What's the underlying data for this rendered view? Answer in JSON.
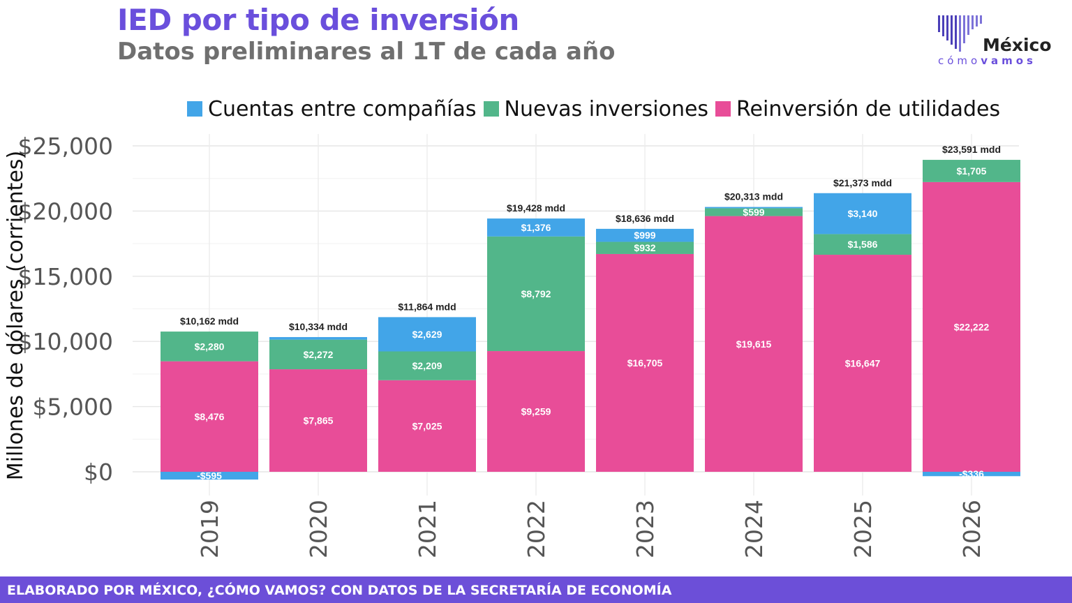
{
  "header": {
    "title": "IED por tipo de inversión",
    "subtitle": "Datos preliminares al 1T de cada año"
  },
  "logo": {
    "word1": "México",
    "word2a": "cómo",
    "word2b": "vamos"
  },
  "footer": {
    "text": "ELABORADO POR MÉXICO, ¿CÓMO VAMOS? CON DATOS DE LA SECRETARÍA DE ECONOMÍA"
  },
  "colors": {
    "title": "#6a4fdc",
    "footer_bg": "#6c4fd8",
    "cuentas": "#42a5e8",
    "nuevas": "#52b68a",
    "reinversion": "#e84d98"
  },
  "chart_data": {
    "type": "bar",
    "stacked": true,
    "categories": [
      "2019",
      "2020",
      "2021",
      "2022",
      "2023",
      "2024",
      "2025",
      "2026"
    ],
    "series": [
      {
        "name": "Reinversión de utilidades",
        "color": "#e84d98",
        "values": [
          8476,
          7865,
          7025,
          9259,
          16705,
          19615,
          16647,
          22222
        ],
        "labels": [
          "$8,476",
          "$7,865",
          "$7,025",
          "$9,259",
          "$16,705",
          "$19,615",
          "$16,647",
          "$22,222"
        ]
      },
      {
        "name": "Nuevas inversiones",
        "color": "#52b68a",
        "values": [
          2280,
          2272,
          2209,
          8792,
          932,
          599,
          1586,
          1705
        ],
        "labels": [
          "$2,280",
          "$2,272",
          "$2,209",
          "$8,792",
          "$932",
          "$599",
          "$1,586",
          "$1,705"
        ]
      },
      {
        "name": "Cuentas entre compañías",
        "color": "#42a5e8",
        "values": [
          -595,
          197,
          2629,
          1376,
          999,
          99,
          3140,
          -336
        ],
        "labels": [
          "-$595",
          "",
          "$2,629",
          "$1,376",
          "$999",
          "",
          "$3,140",
          "-$336"
        ]
      }
    ],
    "totals": [
      10162,
      10334,
      11864,
      19428,
      18636,
      20313,
      21373,
      23591
    ],
    "total_labels": [
      "$10,162 mdd",
      "$10,334 mdd",
      "$11,864 mdd",
      "$19,428 mdd",
      "$18,636 mdd",
      "$20,313 mdd",
      "$21,373 mdd",
      "$23,591 mdd"
    ],
    "legend_order": [
      "Cuentas entre compañías",
      "Nuevas inversiones",
      "Reinversión de utilidades"
    ],
    "legend_position": "top",
    "ylabel": "Millones de dólares (corrientes)",
    "xlabel": "",
    "yticks": [
      0,
      5000,
      10000,
      15000,
      20000,
      25000
    ],
    "ytick_labels": [
      "$0",
      "$5,000",
      "$10,000",
      "$15,000",
      "$20,000",
      "$25,000"
    ],
    "ylim": [
      -1500,
      25500
    ],
    "grid": true
  }
}
